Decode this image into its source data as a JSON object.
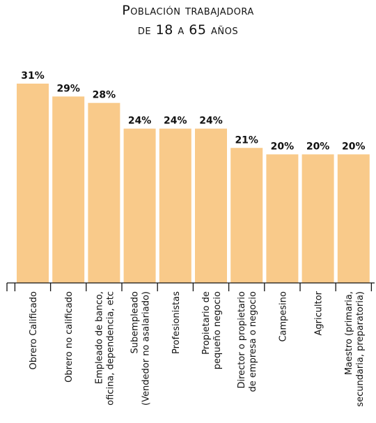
{
  "title": {
    "line1": "Población trabajadora",
    "line2": "de 18 a 65 años"
  },
  "colors": {
    "bar": "#f9ca8a",
    "text": "#111111"
  },
  "chart_data": {
    "type": "bar",
    "title": "Población trabajadora de 18 a 65 años",
    "xlabel": "",
    "ylabel": "",
    "ylim": [
      0,
      31
    ],
    "grid": false,
    "legend": "none",
    "categories": [
      [
        "Obrero Calificado"
      ],
      [
        "Obrero no calificado"
      ],
      [
        "Empleado de banco,",
        "oficina, dependencia, etc"
      ],
      [
        "Subempleado",
        "(Vendedor no asalariado)"
      ],
      [
        "Profesionistas"
      ],
      [
        "Propietario de",
        "pequeño negocio"
      ],
      [
        "Director o propietario",
        "de empresa o negocio"
      ],
      [
        "Campesino"
      ],
      [
        "Agricultor"
      ],
      [
        "Maestro (primaria,",
        "secundaria, preparatoria)"
      ]
    ],
    "values": [
      31,
      29,
      28,
      24,
      24,
      24,
      21,
      20,
      20,
      20
    ],
    "value_labels": [
      "31%",
      "29%",
      "28%",
      "24%",
      "24%",
      "24%",
      "21%",
      "20%",
      "20%",
      "20%"
    ]
  }
}
